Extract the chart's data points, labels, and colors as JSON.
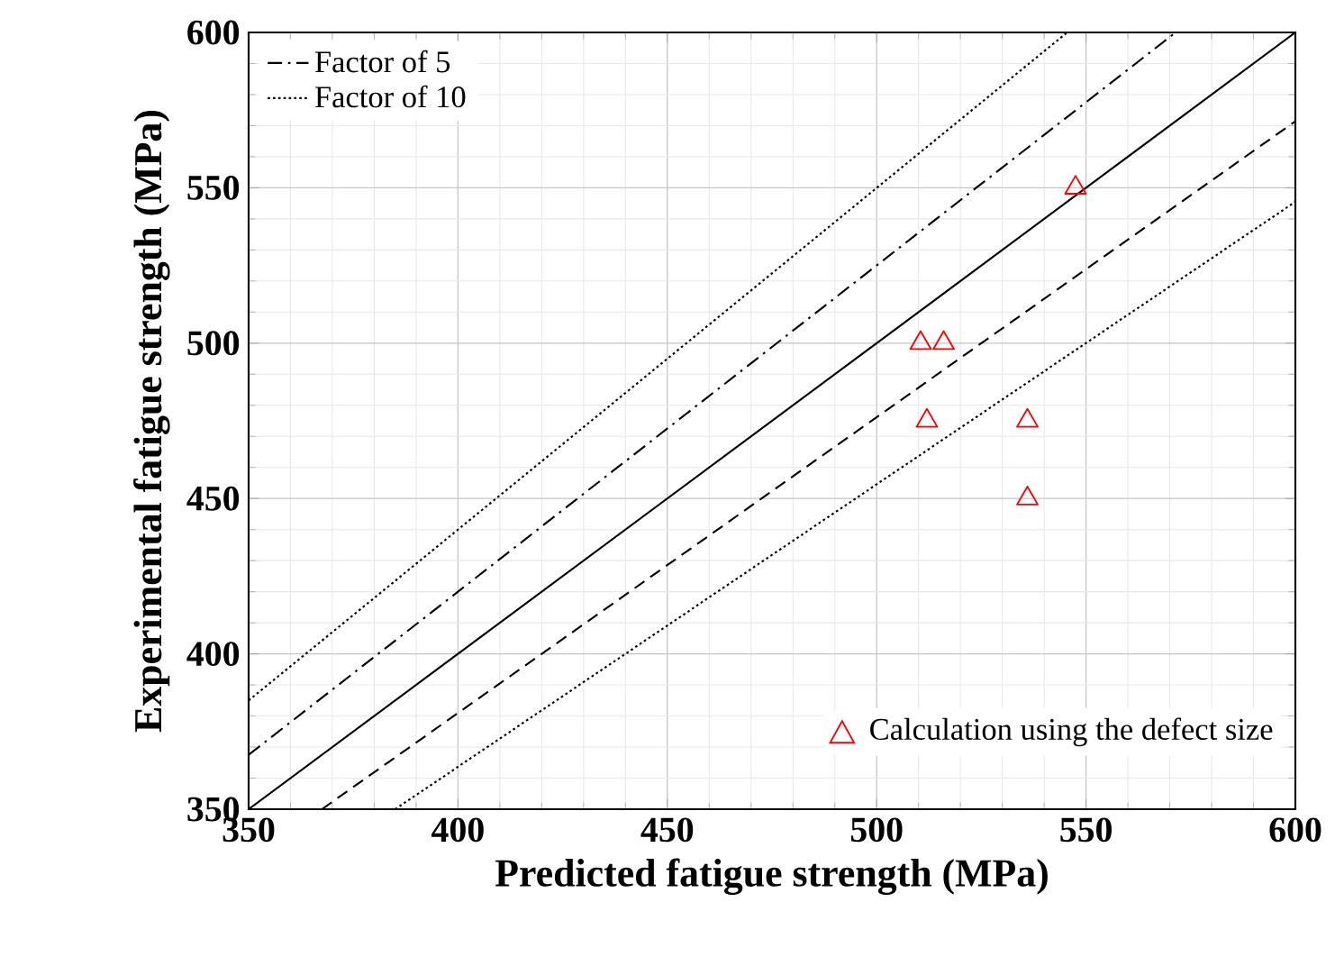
{
  "chart_data": {
    "type": "line",
    "xlabel": "Predicted fatigue strength (MPa)",
    "ylabel": "Experimental fatigue strength (MPa)",
    "xlim": [
      350,
      600
    ],
    "ylim": [
      350,
      600
    ],
    "xticks": [
      350,
      400,
      450,
      500,
      550,
      600
    ],
    "yticks": [
      350,
      400,
      450,
      500,
      550,
      600
    ],
    "grid": true,
    "legend": "top left",
    "series": [
      {
        "color": "#000000",
        "line_style": "solid",
        "marker": "none",
        "x": [
          350,
          600
        ],
        "values": [
          350,
          600
        ]
      },
      {
        "name": "Factor of 5",
        "color": "#000000",
        "line_style": "dashdot",
        "marker": "none",
        "x": [
          350,
          571.4
        ],
        "values": [
          367.5,
          600
        ]
      },
      {
        "color": "#000000",
        "line_style": "dashed",
        "marker": "none",
        "x": [
          367.5,
          600
        ],
        "values": [
          350,
          571.4
        ]
      },
      {
        "name": "Factor of 10",
        "color": "#000000",
        "line_style": "dotted",
        "marker": "none",
        "x": [
          350,
          545.5
        ],
        "values": [
          385,
          600
        ]
      },
      {
        "color": "#000000",
        "line_style": "dotted",
        "marker": "none",
        "x": [
          385,
          600
        ],
        "values": [
          350,
          545.5
        ]
      },
      {
        "type": "scatter",
        "name": "Calculation using the defect size",
        "color": "#ff0000",
        "marker": "triangle",
        "x": [
          510.5,
          516,
          512,
          536,
          536,
          547.5
        ],
        "values": [
          500,
          500,
          475,
          475,
          450,
          550
        ]
      }
    ]
  }
}
